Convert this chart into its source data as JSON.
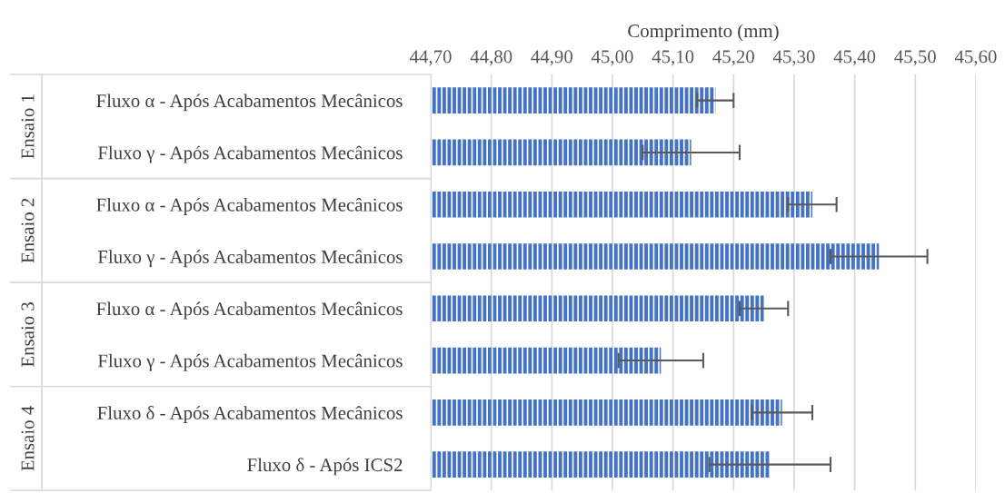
{
  "chart_data": {
    "type": "bar",
    "orientation": "horizontal",
    "xlabel": "Comprimento (mm)",
    "categories": [
      "Fluxo α - Após Acabamentos Mecânicos",
      "Fluxo γ - Após Acabamentos Mecânicos",
      "Fluxo α - Após Acabamentos Mecânicos",
      "Fluxo γ - Após Acabamentos Mecânicos",
      "Fluxo α - Após Acabamentos Mecânicos",
      "Fluxo γ - Após Acabamentos Mecânicos",
      "Fluxo δ - Após Acabamentos Mecânicos",
      "Fluxo δ - Após ICS2"
    ],
    "values": [
      45.17,
      45.13,
      45.33,
      45.44,
      45.25,
      45.08,
      45.28,
      45.26
    ],
    "errors": [
      0.03,
      0.08,
      0.04,
      0.08,
      0.04,
      0.07,
      0.05,
      0.1
    ],
    "color": "#4472c4",
    "xlim": [
      44.7,
      45.6
    ],
    "xticks": [
      {
        "value": 44.7,
        "label": "44,70"
      },
      {
        "value": 44.8,
        "label": "44,80"
      },
      {
        "value": 44.9,
        "label": "44,90"
      },
      {
        "value": 45.0,
        "label": "45,00"
      },
      {
        "value": 45.1,
        "label": "45,10"
      },
      {
        "value": 45.2,
        "label": "45,20"
      },
      {
        "value": 45.3,
        "label": "45,30"
      },
      {
        "value": 45.4,
        "label": "45,40"
      },
      {
        "value": 45.5,
        "label": "45,50"
      },
      {
        "value": 45.6,
        "label": "45,60"
      }
    ],
    "grid": "x",
    "annotations": [
      "Ensaio 1",
      "Ensaio 2",
      "Ensaio 3",
      "Ensaio 4"
    ]
  }
}
